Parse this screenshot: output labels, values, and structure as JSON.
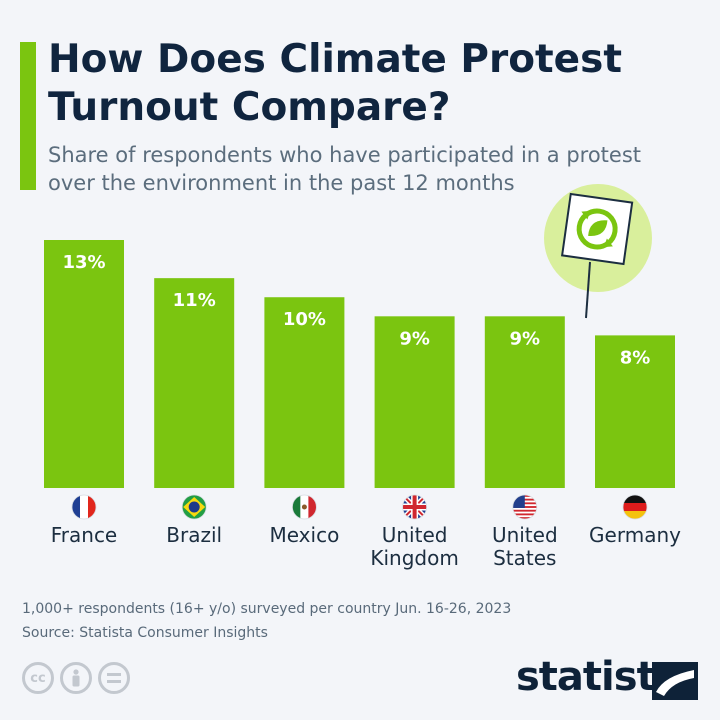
{
  "title": "How Does Climate Protest\nTurnout Compare?",
  "subtitle": "Share of respondents who have participated in a protest over the environment in the past 12 months",
  "chart_data": {
    "type": "bar",
    "categories": [
      "France",
      "Brazil",
      "Mexico",
      "United Kingdom",
      "United States",
      "Germany"
    ],
    "category_lines": [
      [
        "France"
      ],
      [
        "Brazil"
      ],
      [
        "Mexico"
      ],
      [
        "United",
        "Kingdom"
      ],
      [
        "United",
        "States"
      ],
      [
        "Germany"
      ]
    ],
    "values": [
      13,
      11,
      10,
      9,
      9,
      8
    ],
    "value_labels": [
      "13%",
      "11%",
      "10%",
      "9%",
      "9%",
      "8%"
    ],
    "ylim": [
      0,
      13
    ],
    "grid": false,
    "bar_color": "#7bc510"
  },
  "flags": [
    "france-flag-icon",
    "brazil-flag-icon",
    "mexico-flag-icon",
    "uk-flag-icon",
    "us-flag-icon",
    "germany-flag-icon"
  ],
  "footer": {
    "note": "1,000+ respondents (16+ y/o) surveyed per country Jun. 16-26, 2023",
    "source": "Source: Statista Consumer Insights",
    "logo": "statista",
    "license_icons": [
      "cc-icon",
      "attribution-icon",
      "no-derivatives-icon"
    ]
  },
  "colors": {
    "background": "#f3f5f9",
    "accent": "#7bc510",
    "title": "#10253f",
    "text": "#5b6d7d"
  }
}
